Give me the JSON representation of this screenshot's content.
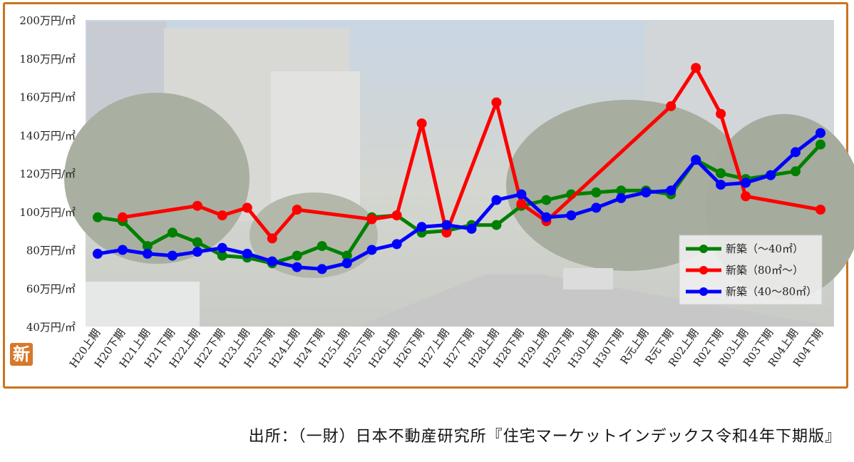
{
  "chart_data": {
    "type": "line",
    "categories": [
      "H20上期",
      "H20下期",
      "H21上期",
      "H21下期",
      "H22上期",
      "H22下期",
      "H23上期",
      "H23下期",
      "H24上期",
      "H24下期",
      "H25上期",
      "H25下期",
      "H26上期",
      "H26下期",
      "H27上期",
      "H27下期",
      "H28上期",
      "H28下期",
      "H29上期",
      "H29下期",
      "H30上期",
      "H30下期",
      "R元上期",
      "R元下期",
      "R02上期",
      "R02下期",
      "R03上期",
      "R03下期",
      "R04上期",
      "R04下期"
    ],
    "yticks": [
      "200万円/㎡",
      "180万円/㎡",
      "160万円/㎡",
      "140万円/㎡",
      "120万円/㎡",
      "100万円/㎡",
      "80万円/㎡",
      "60万円/㎡",
      "40万円/㎡"
    ],
    "ylim": [
      40,
      200
    ],
    "grid": false,
    "legend_position": "right",
    "series": [
      {
        "name": "新築（～40㎡）",
        "color": "#008000",
        "values": [
          97,
          95,
          82,
          89,
          84,
          77,
          76,
          73,
          77,
          82,
          77,
          97,
          98,
          89,
          90,
          93,
          93,
          103,
          106,
          109,
          110,
          111,
          111,
          109,
          127,
          120,
          117,
          119,
          121,
          135
        ]
      },
      {
        "name": "新築（80㎡～）",
        "color": "#ff0000",
        "values": [
          null,
          97,
          null,
          null,
          103,
          98,
          102,
          86,
          101,
          null,
          null,
          96,
          98,
          146,
          89,
          null,
          157,
          104,
          95,
          null,
          null,
          null,
          null,
          155,
          175,
          151,
          108,
          null,
          null,
          101
        ]
      },
      {
        "name": "新築（40～80㎡）",
        "color": "#0000ff",
        "values": [
          78,
          80,
          78,
          77,
          79,
          81,
          78,
          74,
          71,
          70,
          73,
          80,
          83,
          92,
          93,
          91,
          106,
          109,
          97,
          98,
          102,
          107,
          110,
          111,
          127,
          114,
          115,
          119,
          131,
          141
        ]
      }
    ]
  },
  "logo_text": "新",
  "source": "出所：（一財）日本不動産研究所『住宅マーケットインデックス令和4年下期版』"
}
